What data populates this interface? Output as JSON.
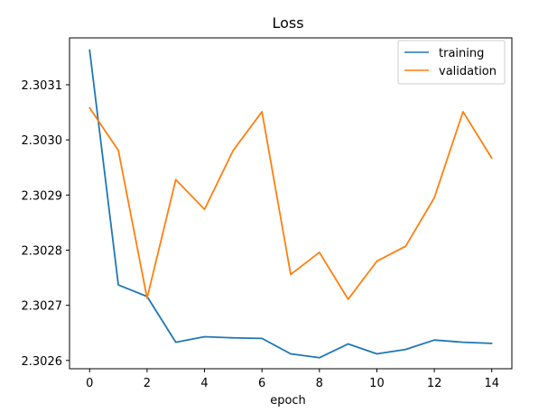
{
  "chart_data": {
    "type": "line",
    "title": "Loss",
    "xlabel": "epoch",
    "ylabel": "",
    "x": [
      0,
      1,
      2,
      3,
      4,
      5,
      6,
      7,
      8,
      9,
      10,
      11,
      12,
      13,
      14
    ],
    "xlim": [
      -0.7,
      14.7
    ],
    "ylim": [
      2.302594,
      2.302585
    ],
    "ylim_note": "",
    "x_ticks": [
      0,
      2,
      4,
      6,
      8,
      10,
      12,
      14
    ],
    "y_ticks": [
      2.3026,
      2.3027,
      2.3028,
      2.3029,
      2.303,
      2.3031
    ],
    "y_tick_labels": [
      "2.3026",
      "2.3027",
      "2.3028",
      "2.3029",
      "2.3030",
      "2.3031"
    ],
    "grid": false,
    "legend_position": "top-right",
    "series": [
      {
        "name": "training",
        "color": "#1f77b4",
        "values": [
          2.303163,
          2.302737,
          2.302716,
          2.302633,
          2.302643,
          2.302641,
          2.30264,
          2.302612,
          2.302605,
          2.30263,
          2.302612,
          2.30262,
          2.302637,
          2.302633,
          2.302631
        ]
      },
      {
        "name": "validation",
        "color": "#ff7f0e",
        "values": [
          2.303058,
          2.302981,
          2.302713,
          2.302928,
          2.302874,
          2.302981,
          2.303051,
          2.302756,
          2.302796,
          2.302711,
          2.30278,
          2.302807,
          2.302895,
          2.303051,
          2.302967
        ]
      }
    ]
  }
}
